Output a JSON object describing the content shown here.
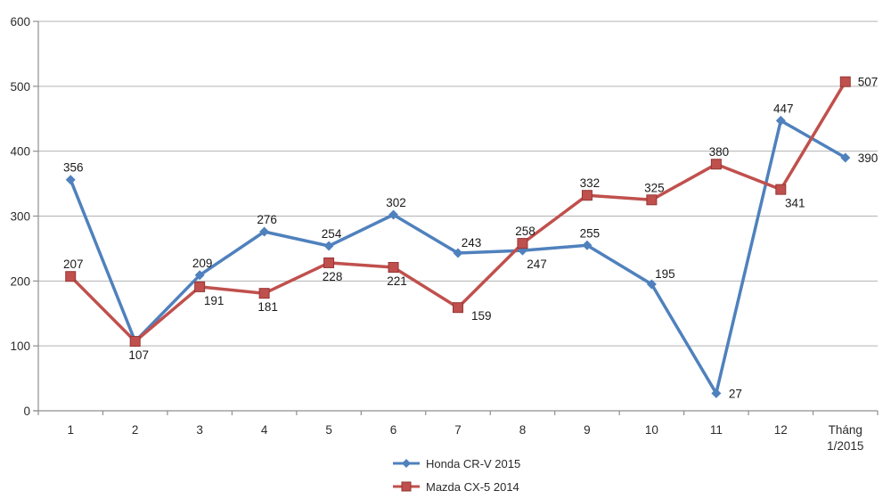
{
  "chart_data": {
    "type": "line",
    "title": "",
    "categories": [
      "1",
      "2",
      "3",
      "4",
      "5",
      "6",
      "7",
      "8",
      "9",
      "10",
      "11",
      "12",
      "Tháng\n1/2015"
    ],
    "y_axis": {
      "min": 0,
      "max": 600,
      "step": 100,
      "tick_labels": [
        "0",
        "100",
        "200",
        "300",
        "400",
        "500",
        "600"
      ]
    },
    "grid": true,
    "legend_position": "bottom",
    "series": [
      {
        "name": "Honda CR-V 2015",
        "color": "#4F81BD",
        "marker": "diamond",
        "values": [
          356,
          107,
          209,
          276,
          254,
          302,
          243,
          247,
          255,
          195,
          27,
          447,
          390
        ],
        "show_labels": [
          true,
          false,
          true,
          true,
          true,
          true,
          true,
          true,
          true,
          true,
          true,
          true,
          true
        ],
        "label_positions": [
          "above",
          null,
          "above",
          "above",
          "above",
          "above",
          "above-right",
          "below-right",
          "above",
          "above-right",
          "right",
          "above",
          "right"
        ]
      },
      {
        "name": "Mazda CX-5 2014",
        "color": "#C0504D",
        "marker": "square",
        "marker_stroke": "#943634",
        "values": [
          207,
          107,
          191,
          181,
          228,
          221,
          159,
          258,
          332,
          325,
          380,
          341,
          507
        ],
        "show_labels": [
          true,
          true,
          true,
          true,
          true,
          true,
          true,
          true,
          true,
          true,
          true,
          true,
          true
        ],
        "label_positions": [
          "above",
          "below",
          "below-right",
          "below",
          "below",
          "below",
          "right-below",
          "above",
          "above",
          "above",
          "above",
          "below-right",
          "right"
        ]
      }
    ],
    "colors": {
      "gridline": "#b3b3b3",
      "axis": "#8f8f8f",
      "data_label": "#1a1a1a",
      "tick_label": "#2b2b2b"
    }
  }
}
